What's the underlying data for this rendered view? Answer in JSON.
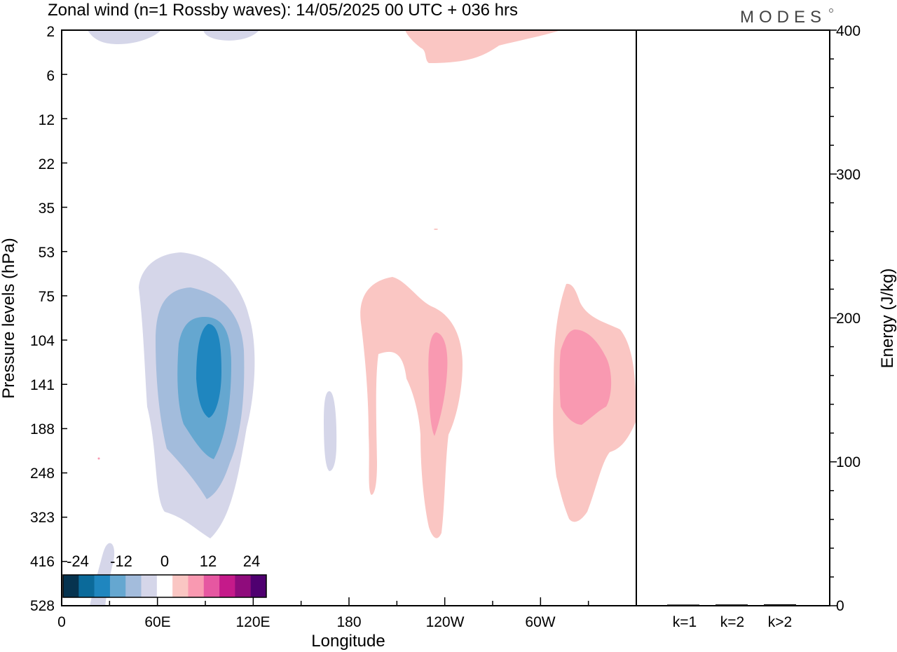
{
  "title": "Zonal wind (n=1 Rossby waves):  14/05/2025  00 UTC  + 036 hrs",
  "logo": "MODES",
  "chart_data": [
    {
      "type": "heatmap",
      "title": "Zonal wind (n=1 Rossby waves):  14/05/2025  00 UTC  + 036 hrs",
      "xlabel": "Longitude",
      "ylabel": "Pressure levels (hPa)",
      "x_ticks": [
        "0",
        "60E",
        "120E",
        "180",
        "120W",
        "60W"
      ],
      "x_tick_positions_deg_east": [
        0,
        60,
        120,
        180,
        240,
        300
      ],
      "xlim_deg_east": [
        0,
        360
      ],
      "y_ticks": [
        "2",
        "6",
        "12",
        "22",
        "35",
        "53",
        "75",
        "104",
        "141",
        "188",
        "248",
        "323",
        "416",
        "528"
      ],
      "y_axis": "pressure levels (categorical, top = 2 hPa, bottom = 528 hPa)",
      "contour_levels": [
        -24,
        -20,
        -16,
        -12,
        -8,
        -4,
        4,
        8,
        12,
        16,
        20,
        24
      ],
      "colorbar": {
        "tick_labels": [
          "-24",
          "-12",
          "0",
          "12",
          "24"
        ],
        "tick_values": [
          -24,
          -12,
          0,
          12,
          24
        ],
        "colors": [
          "#06334f",
          "#0b6a9a",
          "#1f86bf",
          "#65a7d0",
          "#a3bcdc",
          "#d5d6e9",
          "#ffffff",
          "#fac6c3",
          "#f999b1",
          "#e657a1",
          "#c51a8a",
          "#8f0c7c",
          "#4f0070"
        ]
      },
      "features": [
        {
          "sign": "negative",
          "peak": -16,
          "lon_center_deg_east": 92,
          "pressure_range_hPa": [
            75,
            416
          ],
          "peak_level_hPa": 141
        },
        {
          "sign": "negative",
          "peak": -4,
          "lon_center_deg_east": 168,
          "pressure_range_hPa": [
            141,
            248
          ]
        },
        {
          "sign": "negative",
          "peak": -4,
          "lon_center_deg_east": 35,
          "pressure_range_hPa": [
            2,
            2
          ]
        },
        {
          "sign": "negative",
          "peak": -4,
          "lon_center_deg_east": 25,
          "pressure_range_hPa": [
            416,
            528
          ]
        },
        {
          "sign": "positive",
          "peak": 8,
          "lon_center_deg_east": 240,
          "pressure_range_hPa": [
            2,
            6
          ]
        },
        {
          "sign": "positive",
          "peak": 8,
          "lon_center_deg_east": 233,
          "pressure_range_hPa": [
            75,
            323
          ],
          "peak_level_hPa": 141
        },
        {
          "sign": "positive",
          "peak": 8,
          "lon_center_deg_east": 322,
          "pressure_range_hPa": [
            75,
            323
          ],
          "peak_level_hPa": 141
        }
      ]
    },
    {
      "type": "bar",
      "categories": [
        "k=1",
        "k=2",
        "k>2"
      ],
      "values": [
        0.3,
        0.4,
        0.5
      ],
      "ylabel": "Energy (J/kg)",
      "ylim": [
        0,
        400
      ],
      "y_ticks": [
        0,
        100,
        200,
        300,
        400
      ]
    }
  ]
}
